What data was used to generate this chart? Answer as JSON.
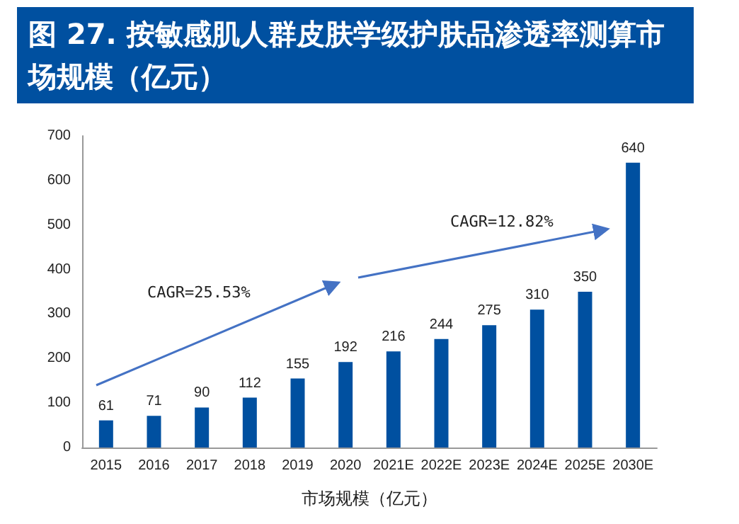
{
  "chart_data": {
    "type": "bar",
    "title": "图 27. 按敏感肌人群皮肤学级护肤品渗透率测算市场规模（亿元）",
    "xlabel": "市场规模（亿元）",
    "categories": [
      "2015",
      "2016",
      "2017",
      "2018",
      "2019",
      "2020",
      "2021E",
      "2022E",
      "2023E",
      "2024E",
      "2025E",
      "2030E"
    ],
    "values": [
      61,
      71,
      90,
      112,
      155,
      192,
      216,
      244,
      275,
      310,
      350,
      640
    ],
    "color": "#0050a0",
    "ylim": [
      0,
      700
    ],
    "yticks": [
      0,
      100,
      200,
      300,
      400,
      500,
      600,
      700
    ],
    "grid": false,
    "data_labels": true,
    "annotations": [
      "CAGR=25.53%",
      "CAGR=12.82%"
    ]
  }
}
